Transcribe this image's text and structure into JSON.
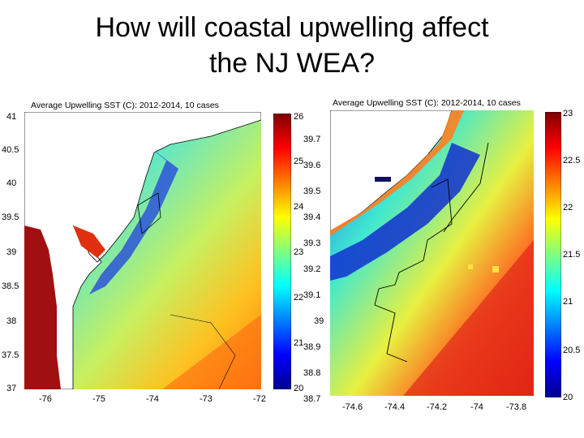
{
  "slide": {
    "title_line1": "How will coastal upwelling affect",
    "title_line2": "the NJ WEA?"
  },
  "maps": [
    {
      "title": "Average Upwelling SST (C): 2012-2014, 10 cases",
      "lat_ticks": [
        "41",
        "40.5",
        "40",
        "39.5",
        "39",
        "38.5",
        "38",
        "37.5",
        "37"
      ],
      "lon_ticks": [
        "-76",
        "-75",
        "-74",
        "-73",
        "-72"
      ],
      "colorbar_ticks": [
        "26",
        "25",
        "24",
        "23",
        "22",
        "21",
        "20"
      ]
    },
    {
      "title": "Average Upwelling SST (C): 2012-2014, 10 cases",
      "lat_ticks": [
        "39.7",
        "39.6",
        "39.5",
        "39.4",
        "39.3",
        "39.2",
        "39.1",
        "39",
        "38.9",
        "38.8",
        "38.7"
      ],
      "lon_ticks": [
        "-74.6",
        "-74.4",
        "-74.2",
        "-74",
        "-73.8"
      ],
      "colorbar_ticks": [
        "23",
        "22.5",
        "22",
        "21.5",
        "21",
        "20.5",
        "20"
      ]
    }
  ],
  "colors": {
    "land": "#ffffff",
    "coastline": "#000000",
    "colormap": [
      "#00008f",
      "#0040ff",
      "#00bfff",
      "#40ffbf",
      "#bfff40",
      "#ffbf00",
      "#ff4000",
      "#8f0000"
    ]
  }
}
